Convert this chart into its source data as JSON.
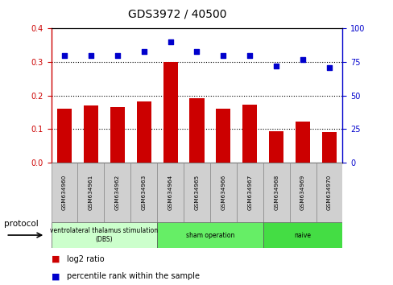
{
  "title": "GDS3972 / 40500",
  "samples": [
    "GSM634960",
    "GSM634961",
    "GSM634962",
    "GSM634963",
    "GSM634964",
    "GSM634965",
    "GSM634966",
    "GSM634967",
    "GSM634968",
    "GSM634969",
    "GSM634970"
  ],
  "log2_ratio": [
    0.16,
    0.17,
    0.165,
    0.182,
    0.3,
    0.193,
    0.16,
    0.172,
    0.094,
    0.122,
    0.09
  ],
  "percentile_rank": [
    80,
    80,
    80,
    83,
    90,
    83,
    80,
    80,
    72,
    77,
    71
  ],
  "bar_color": "#cc0000",
  "dot_color": "#0000cc",
  "ylim_left": [
    0,
    0.4
  ],
  "ylim_right": [
    0,
    100
  ],
  "yticks_left": [
    0,
    0.1,
    0.2,
    0.3,
    0.4
  ],
  "yticks_right": [
    0,
    25,
    50,
    75,
    100
  ],
  "groups": [
    {
      "label": "ventrolateral thalamus stimulation\n(DBS)",
      "start": 0,
      "end": 3,
      "color": "#ccffcc"
    },
    {
      "label": "sham operation",
      "start": 4,
      "end": 7,
      "color": "#66ee66"
    },
    {
      "label": "naive",
      "start": 8,
      "end": 10,
      "color": "#44dd44"
    }
  ],
  "protocol_label": "protocol",
  "legend_bar_label": "log2 ratio",
  "legend_dot_label": "percentile rank within the sample",
  "grid_color": "black",
  "sample_box_color": "#d0d0d0"
}
